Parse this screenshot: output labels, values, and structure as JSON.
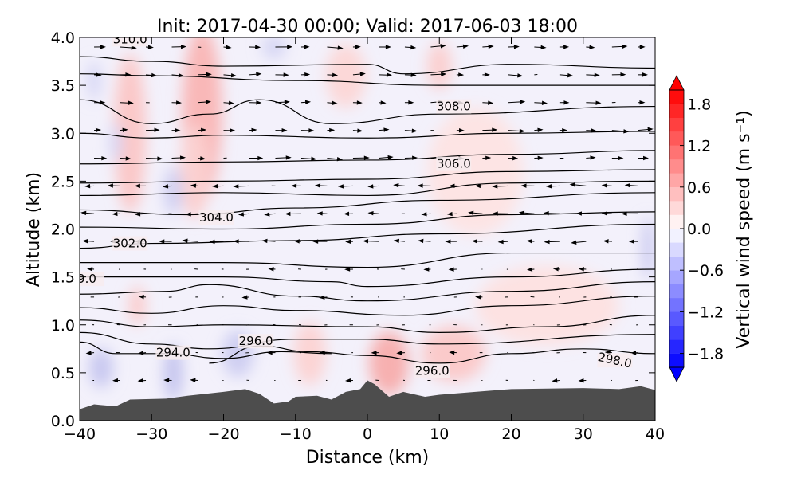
{
  "chart_data": {
    "type": "contour",
    "title": "Init: 2017-04-30 00:00; Valid: 2017-06-03 18:00",
    "xlabel": "Distance (km)",
    "ylabel": "Altitude (km)",
    "xlim": [
      -40,
      40
    ],
    "ylim": [
      0.0,
      4.0
    ],
    "xticks": [
      "−40",
      "−30",
      "−20",
      "−10",
      "0",
      "10",
      "20",
      "30",
      "40"
    ],
    "yticks": [
      "0.0",
      "0.5",
      "1.0",
      "1.5",
      "2.0",
      "2.5",
      "3.0",
      "3.5",
      "4.0"
    ],
    "colorbar": {
      "label": "Vertical wind speed (m s⁻¹)",
      "range": [
        -2.0,
        2.0
      ],
      "step": 0.2,
      "ticks": [
        "1.8",
        "1.2",
        "0.6",
        "0.0",
        "−0.6",
        "−1.2",
        "−1.8"
      ],
      "colormap": "bwr",
      "extend": "both"
    },
    "terrain": {
      "color": "#4d4d4d",
      "x": [
        -40,
        -38,
        -35,
        -33,
        -28,
        -25,
        -20,
        -17,
        -15,
        -13,
        -11,
        -10,
        -7,
        -5,
        -3,
        -1,
        0,
        1,
        3,
        5,
        8,
        10,
        15,
        20,
        30,
        35,
        38,
        40
      ],
      "alt": [
        0.12,
        0.17,
        0.15,
        0.22,
        0.23,
        0.26,
        0.3,
        0.33,
        0.28,
        0.18,
        0.2,
        0.25,
        0.26,
        0.22,
        0.3,
        0.33,
        0.42,
        0.38,
        0.25,
        0.3,
        0.25,
        0.27,
        0.3,
        0.33,
        0.34,
        0.33,
        0.36,
        0.32
      ]
    },
    "contours": [
      [
        [
          -40,
          3.8
        ],
        [
          -30,
          3.75
        ],
        [
          -20,
          3.7
        ],
        [
          0,
          3.72
        ],
        [
          5,
          3.62
        ],
        [
          20,
          3.72
        ],
        [
          40,
          3.68
        ]
      ],
      [
        [
          -40,
          3.62
        ],
        [
          -30,
          3.6
        ],
        [
          -10,
          3.55
        ],
        [
          10,
          3.5
        ],
        [
          20,
          3.5
        ],
        [
          40,
          3.5
        ]
      ],
      [
        [
          -40,
          3.35
        ],
        [
          -30,
          3.1
        ],
        [
          -22,
          3.2
        ],
        [
          -15,
          3.35
        ],
        [
          -5,
          3.1
        ],
        [
          10,
          3.2
        ],
        [
          40,
          3.28
        ]
      ],
      [
        [
          -40,
          3.0
        ],
        [
          -30,
          2.95
        ],
        [
          -20,
          2.98
        ],
        [
          0,
          2.95
        ],
        [
          20,
          3.0
        ],
        [
          40,
          3.02
        ]
      ],
      [
        [
          -40,
          2.68
        ],
        [
          -20,
          2.7
        ],
        [
          0,
          2.72
        ],
        [
          20,
          2.78
        ],
        [
          40,
          2.82
        ]
      ],
      [
        [
          -40,
          2.48
        ],
        [
          -20,
          2.5
        ],
        [
          0,
          2.52
        ],
        [
          20,
          2.6
        ],
        [
          40,
          2.62
        ]
      ],
      [
        [
          -40,
          2.35
        ],
        [
          -20,
          2.38
        ],
        [
          0,
          2.35
        ],
        [
          20,
          2.48
        ],
        [
          40,
          2.5
        ]
      ],
      [
        [
          -40,
          2.2
        ],
        [
          -25,
          2.15
        ],
        [
          -10,
          2.22
        ],
        [
          10,
          2.3
        ],
        [
          40,
          2.38
        ]
      ],
      [
        [
          -40,
          2.02
        ],
        [
          -20,
          2.0
        ],
        [
          0,
          2.05
        ],
        [
          20,
          2.15
        ],
        [
          40,
          2.18
        ]
      ],
      [
        [
          -40,
          1.8
        ],
        [
          -30,
          1.85
        ],
        [
          -10,
          1.88
        ],
        [
          10,
          1.95
        ],
        [
          40,
          2.05
        ]
      ],
      [
        [
          -40,
          1.65
        ],
        [
          -20,
          1.65
        ],
        [
          0,
          1.6
        ],
        [
          20,
          1.75
        ],
        [
          40,
          1.75
        ]
      ],
      [
        [
          -40,
          1.5
        ],
        [
          -20,
          1.5
        ],
        [
          -5,
          1.45
        ],
        [
          0,
          1.4
        ],
        [
          20,
          1.5
        ],
        [
          40,
          1.58
        ]
      ],
      [
        [
          -40,
          1.32
        ],
        [
          -28,
          1.35
        ],
        [
          -22,
          1.42
        ],
        [
          -10,
          1.3
        ],
        [
          0,
          1.25
        ],
        [
          20,
          1.35
        ],
        [
          40,
          1.45
        ]
      ],
      [
        [
          -40,
          1.18
        ],
        [
          -30,
          1.12
        ],
        [
          -20,
          1.2
        ],
        [
          -10,
          1.15
        ],
        [
          5,
          1.1
        ],
        [
          20,
          1.2
        ],
        [
          40,
          1.3
        ]
      ],
      [
        [
          -40,
          1.05
        ],
        [
          -30,
          0.98
        ],
        [
          -20,
          1.0
        ],
        [
          0,
          0.98
        ],
        [
          10,
          0.92
        ],
        [
          25,
          0.98
        ],
        [
          40,
          1.1
        ]
      ],
      [
        [
          -40,
          0.92
        ],
        [
          -30,
          0.8
        ],
        [
          -22,
          0.75
        ],
        [
          -10,
          0.85
        ],
        [
          0,
          0.85
        ],
        [
          10,
          0.8
        ],
        [
          40,
          0.9
        ]
      ],
      [
        [
          -40,
          0.82
        ],
        [
          -35,
          0.7
        ],
        [
          -28,
          0.7
        ],
        [
          -20,
          0.65
        ],
        [
          -12,
          0.72
        ],
        [
          -5,
          0.7
        ]
      ],
      [
        [
          -22,
          0.6
        ],
        [
          -15,
          0.78
        ],
        [
          -8,
          0.72
        ],
        [
          0,
          0.68
        ],
        [
          10,
          0.6
        ],
        [
          20,
          0.7
        ],
        [
          30,
          0.75
        ],
        [
          40,
          0.7
        ]
      ]
    ],
    "contour_labels": [
      {
        "text": "310.0",
        "x": -33,
        "alt": 3.98,
        "angle": 0
      },
      {
        "text": "308.0",
        "x": 12,
        "alt": 3.28,
        "angle": 0
      },
      {
        "text": "306.0",
        "x": 12,
        "alt": 2.68,
        "angle": 0
      },
      {
        "text": "304.0",
        "x": -21,
        "alt": 2.12,
        "angle": 0
      },
      {
        "text": "302.0",
        "x": -33,
        "alt": 1.85,
        "angle": 0
      },
      {
        "text": "9.0",
        "x": -39,
        "alt": 1.48,
        "angle": 0
      },
      {
        "text": "294.0",
        "x": -27,
        "alt": 0.71,
        "angle": 0
      },
      {
        "text": "296.0",
        "x": -15.5,
        "alt": 0.83,
        "angle": 0
      },
      {
        "text": "296.0",
        "x": 9,
        "alt": 0.52,
        "angle": 0
      },
      {
        "text": "298.0",
        "x": 34.4,
        "alt": 0.63,
        "angle": 12
      }
    ]
  }
}
